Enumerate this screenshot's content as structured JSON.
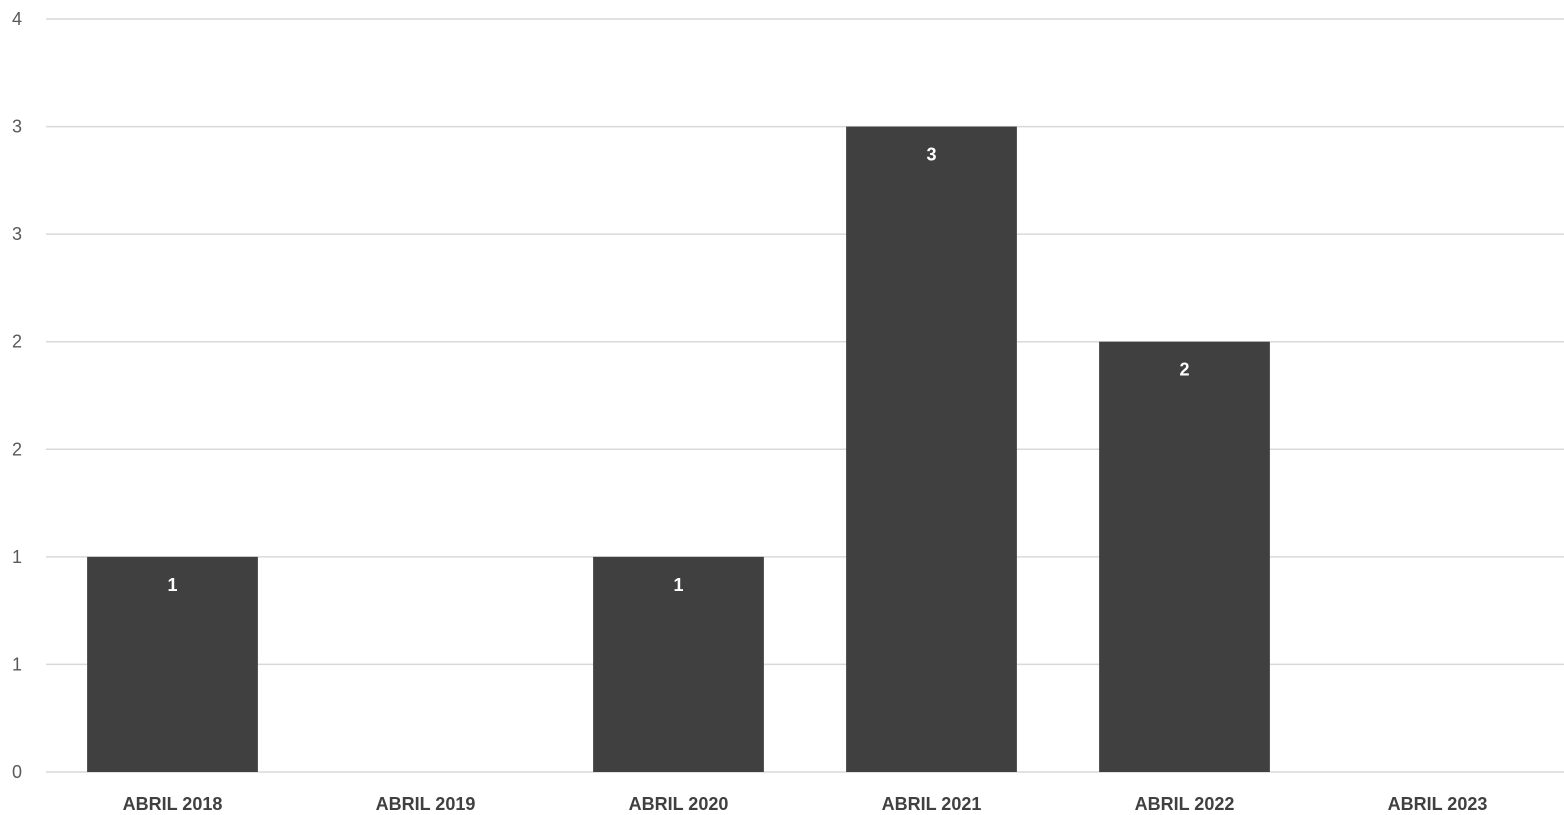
{
  "chart_data": {
    "type": "bar",
    "categories": [
      "ABRIL 2018",
      "ABRIL 2019",
      "ABRIL 2020",
      "ABRIL 2021",
      "ABRIL 2022",
      "ABRIL 2023"
    ],
    "values": [
      1,
      0,
      1,
      3,
      2,
      0
    ],
    "data_labels": [
      "1",
      "",
      "1",
      "3",
      "2",
      ""
    ],
    "y_ticks": [
      0,
      0.5,
      1,
      1.5,
      2,
      2.5,
      3,
      3.5
    ],
    "y_tick_labels": [
      "0",
      "1",
      "1",
      "2",
      "2",
      "3",
      "3",
      "4"
    ],
    "ylim": [
      0,
      3.5
    ],
    "title": "",
    "xlabel": "",
    "ylabel": "",
    "grid": true,
    "legend": "none",
    "colors": {
      "bar": "#404040",
      "grid": "#d9d9d9",
      "axis_text": "#595959",
      "category_text": "#404040",
      "data_label": "#ffffff"
    }
  }
}
